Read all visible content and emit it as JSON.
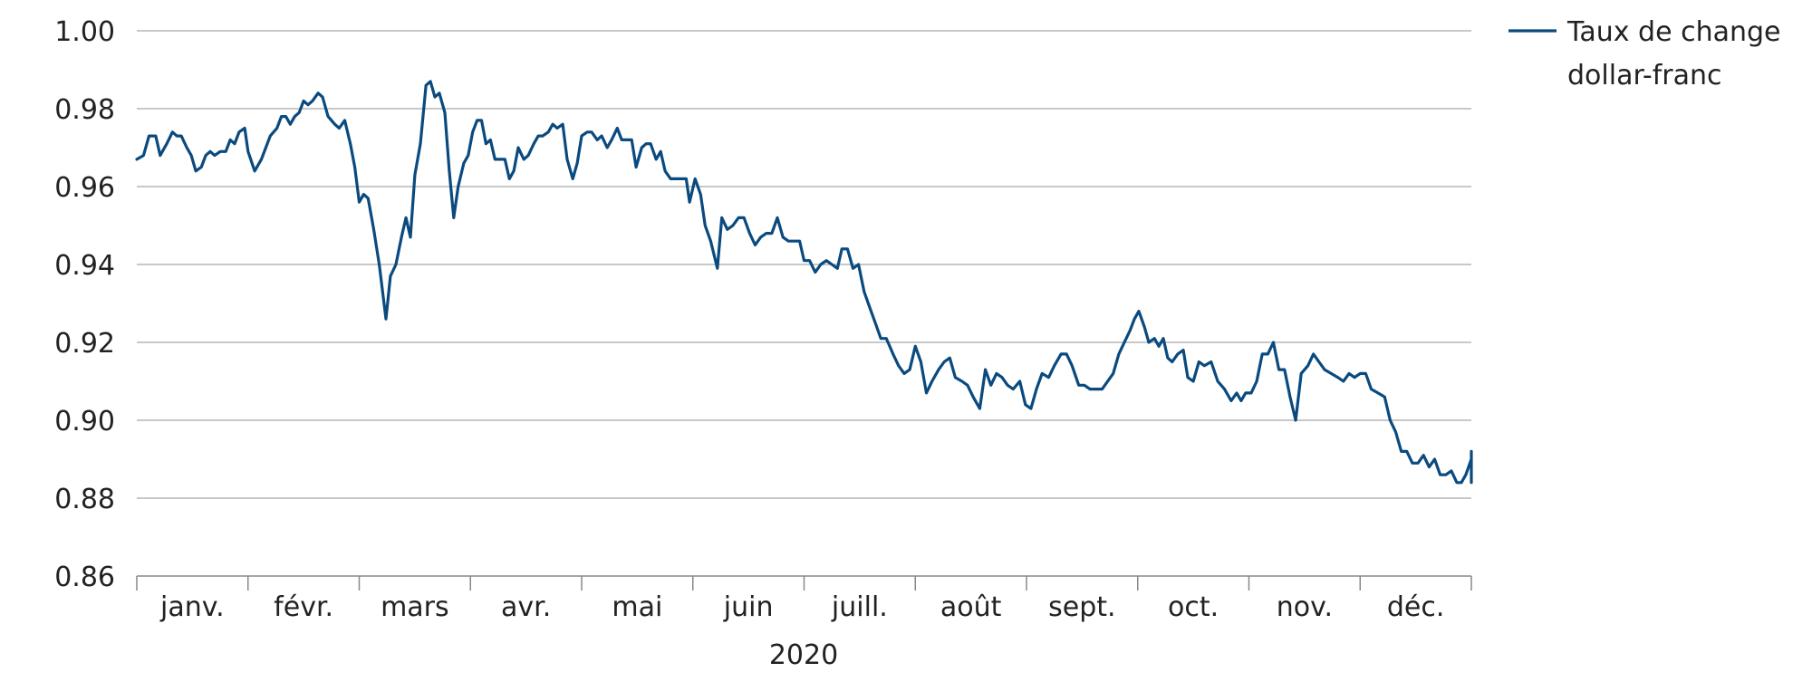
{
  "chart_data": {
    "type": "line",
    "title": "",
    "xlabel": "2020",
    "ylabel": "",
    "ylim": [
      0.86,
      1.0
    ],
    "yticks": [
      "1.00",
      "0.98",
      "0.96",
      "0.94",
      "0.92",
      "0.90",
      "0.88",
      "0.86"
    ],
    "ytick_values": [
      1.0,
      0.98,
      0.96,
      0.94,
      0.92,
      0.9,
      0.88,
      0.86
    ],
    "months": [
      "janv.",
      "févr.",
      "mars",
      "avr.",
      "mai",
      "juin",
      "juill.",
      "août",
      "sept.",
      "oct.",
      "nov.",
      "déc."
    ],
    "grid": "horizontal",
    "legend_position": "top-right",
    "line_color": "#0a4a7f",
    "legend": [
      "Taux de change",
      "dollar-franc"
    ],
    "series": [
      {
        "name": "Taux de change dollar-franc",
        "x_unit": "month (0 = start of janvier 2020, 12 = end of décembre 2020)",
        "points": [
          [
            0.0,
            0.967
          ],
          [
            0.06,
            0.968
          ],
          [
            0.11,
            0.973
          ],
          [
            0.17,
            0.973
          ],
          [
            0.21,
            0.968
          ],
          [
            0.27,
            0.971
          ],
          [
            0.32,
            0.974
          ],
          [
            0.36,
            0.973
          ],
          [
            0.4,
            0.973
          ],
          [
            0.45,
            0.97
          ],
          [
            0.49,
            0.968
          ],
          [
            0.53,
            0.964
          ],
          [
            0.58,
            0.965
          ],
          [
            0.62,
            0.968
          ],
          [
            0.66,
            0.969
          ],
          [
            0.7,
            0.968
          ],
          [
            0.75,
            0.969
          ],
          [
            0.8,
            0.969
          ],
          [
            0.84,
            0.972
          ],
          [
            0.88,
            0.971
          ],
          [
            0.92,
            0.974
          ],
          [
            0.97,
            0.975
          ],
          [
            1.0,
            0.969
          ],
          [
            1.06,
            0.964
          ],
          [
            1.12,
            0.967
          ],
          [
            1.2,
            0.973
          ],
          [
            1.26,
            0.975
          ],
          [
            1.3,
            0.978
          ],
          [
            1.34,
            0.978
          ],
          [
            1.38,
            0.976
          ],
          [
            1.42,
            0.978
          ],
          [
            1.46,
            0.979
          ],
          [
            1.5,
            0.982
          ],
          [
            1.54,
            0.981
          ],
          [
            1.58,
            0.982
          ],
          [
            1.63,
            0.984
          ],
          [
            1.67,
            0.983
          ],
          [
            1.72,
            0.978
          ],
          [
            1.78,
            0.976
          ],
          [
            1.82,
            0.975
          ],
          [
            1.87,
            0.977
          ],
          [
            1.92,
            0.971
          ],
          [
            1.96,
            0.965
          ],
          [
            2.0,
            0.956
          ],
          [
            2.04,
            0.958
          ],
          [
            2.08,
            0.957
          ],
          [
            2.13,
            0.949
          ],
          [
            2.18,
            0.94
          ],
          [
            2.24,
            0.926
          ],
          [
            2.28,
            0.937
          ],
          [
            2.33,
            0.94
          ],
          [
            2.38,
            0.947
          ],
          [
            2.42,
            0.952
          ],
          [
            2.46,
            0.947
          ],
          [
            2.5,
            0.963
          ],
          [
            2.55,
            0.971
          ],
          [
            2.6,
            0.986
          ],
          [
            2.64,
            0.987
          ],
          [
            2.68,
            0.983
          ],
          [
            2.72,
            0.984
          ],
          [
            2.77,
            0.979
          ],
          [
            2.81,
            0.964
          ],
          [
            2.85,
            0.952
          ],
          [
            2.89,
            0.96
          ],
          [
            2.94,
            0.966
          ],
          [
            2.98,
            0.968
          ],
          [
            3.02,
            0.974
          ],
          [
            3.06,
            0.977
          ],
          [
            3.1,
            0.977
          ],
          [
            3.14,
            0.971
          ],
          [
            3.18,
            0.972
          ],
          [
            3.22,
            0.967
          ],
          [
            3.27,
            0.967
          ],
          [
            3.31,
            0.967
          ],
          [
            3.35,
            0.962
          ],
          [
            3.39,
            0.964
          ],
          [
            3.43,
            0.97
          ],
          [
            3.48,
            0.967
          ],
          [
            3.52,
            0.968
          ],
          [
            3.57,
            0.971
          ],
          [
            3.61,
            0.973
          ],
          [
            3.65,
            0.973
          ],
          [
            3.7,
            0.974
          ],
          [
            3.74,
            0.976
          ],
          [
            3.78,
            0.975
          ],
          [
            3.83,
            0.976
          ],
          [
            3.87,
            0.967
          ],
          [
            3.92,
            0.962
          ],
          [
            3.96,
            0.966
          ],
          [
            4.0,
            0.973
          ],
          [
            4.05,
            0.974
          ],
          [
            4.09,
            0.974
          ],
          [
            4.14,
            0.972
          ],
          [
            4.18,
            0.973
          ],
          [
            4.23,
            0.97
          ],
          [
            4.27,
            0.972
          ],
          [
            4.32,
            0.975
          ],
          [
            4.36,
            0.972
          ],
          [
            4.41,
            0.972
          ],
          [
            4.45,
            0.972
          ],
          [
            4.49,
            0.965
          ],
          [
            4.54,
            0.97
          ],
          [
            4.58,
            0.971
          ],
          [
            4.62,
            0.971
          ],
          [
            4.67,
            0.967
          ],
          [
            4.71,
            0.969
          ],
          [
            4.75,
            0.964
          ],
          [
            4.8,
            0.962
          ],
          [
            4.85,
            0.962
          ],
          [
            4.9,
            0.962
          ],
          [
            4.94,
            0.962
          ],
          [
            4.97,
            0.956
          ],
          [
            5.02,
            0.962
          ],
          [
            5.07,
            0.958
          ],
          [
            5.11,
            0.95
          ],
          [
            5.16,
            0.946
          ],
          [
            5.22,
            0.939
          ],
          [
            5.26,
            0.952
          ],
          [
            5.31,
            0.949
          ],
          [
            5.36,
            0.95
          ],
          [
            5.41,
            0.952
          ],
          [
            5.46,
            0.952
          ],
          [
            5.51,
            0.948
          ],
          [
            5.56,
            0.945
          ],
          [
            5.61,
            0.947
          ],
          [
            5.66,
            0.948
          ],
          [
            5.71,
            0.948
          ],
          [
            5.76,
            0.952
          ],
          [
            5.81,
            0.947
          ],
          [
            5.86,
            0.946
          ],
          [
            5.91,
            0.946
          ],
          [
            5.96,
            0.946
          ],
          [
            6.0,
            0.941
          ],
          [
            6.05,
            0.941
          ],
          [
            6.1,
            0.938
          ],
          [
            6.15,
            0.94
          ],
          [
            6.2,
            0.941
          ],
          [
            6.25,
            0.94
          ],
          [
            6.3,
            0.939
          ],
          [
            6.34,
            0.944
          ],
          [
            6.39,
            0.944
          ],
          [
            6.44,
            0.939
          ],
          [
            6.49,
            0.94
          ],
          [
            6.54,
            0.933
          ],
          [
            6.59,
            0.929
          ],
          [
            6.64,
            0.925
          ],
          [
            6.69,
            0.921
          ],
          [
            6.74,
            0.921
          ],
          [
            6.8,
            0.917
          ],
          [
            6.85,
            0.914
          ],
          [
            6.9,
            0.912
          ],
          [
            6.95,
            0.913
          ],
          [
            7.0,
            0.919
          ],
          [
            7.05,
            0.915
          ],
          [
            7.1,
            0.907
          ],
          [
            7.15,
            0.91
          ],
          [
            7.21,
            0.913
          ],
          [
            7.26,
            0.915
          ],
          [
            7.31,
            0.916
          ],
          [
            7.36,
            0.911
          ],
          [
            7.42,
            0.91
          ],
          [
            7.47,
            0.909
          ],
          [
            7.52,
            0.906
          ],
          [
            7.58,
            0.903
          ],
          [
            7.63,
            0.913
          ],
          [
            7.68,
            0.909
          ],
          [
            7.73,
            0.912
          ],
          [
            7.78,
            0.911
          ],
          [
            7.83,
            0.909
          ],
          [
            7.88,
            0.908
          ],
          [
            7.94,
            0.91
          ],
          [
            7.99,
            0.904
          ],
          [
            8.04,
            0.903
          ],
          [
            8.09,
            0.908
          ],
          [
            8.14,
            0.912
          ],
          [
            8.2,
            0.911
          ],
          [
            8.25,
            0.914
          ],
          [
            8.31,
            0.917
          ],
          [
            8.36,
            0.917
          ],
          [
            8.41,
            0.914
          ],
          [
            8.47,
            0.909
          ],
          [
            8.52,
            0.909
          ],
          [
            8.57,
            0.908
          ],
          [
            8.62,
            0.908
          ],
          [
            8.68,
            0.908
          ],
          [
            8.73,
            0.91
          ],
          [
            8.78,
            0.912
          ],
          [
            8.83,
            0.917
          ],
          [
            8.88,
            0.92
          ],
          [
            8.93,
            0.923
          ],
          [
            8.97,
            0.926
          ],
          [
            9.01,
            0.928
          ],
          [
            9.06,
            0.924
          ],
          [
            9.1,
            0.92
          ],
          [
            9.15,
            0.921
          ],
          [
            9.19,
            0.919
          ],
          [
            9.23,
            0.921
          ],
          [
            9.27,
            0.916
          ],
          [
            9.31,
            0.915
          ],
          [
            9.36,
            0.917
          ],
          [
            9.41,
            0.918
          ],
          [
            9.45,
            0.911
          ],
          [
            9.5,
            0.91
          ],
          [
            9.55,
            0.915
          ],
          [
            9.6,
            0.914
          ],
          [
            9.66,
            0.915
          ],
          [
            9.72,
            0.91
          ],
          [
            9.78,
            0.908
          ],
          [
            9.84,
            0.905
          ],
          [
            9.89,
            0.907
          ],
          [
            9.93,
            0.905
          ],
          [
            9.97,
            0.907
          ],
          [
            10.02,
            0.907
          ],
          [
            10.07,
            0.91
          ],
          [
            10.12,
            0.917
          ],
          [
            10.17,
            0.917
          ],
          [
            10.22,
            0.92
          ],
          [
            10.27,
            0.913
          ],
          [
            10.32,
            0.913
          ],
          [
            10.37,
            0.906
          ],
          [
            10.42,
            0.9
          ],
          [
            10.47,
            0.912
          ],
          [
            10.53,
            0.914
          ],
          [
            10.58,
            0.917
          ],
          [
            10.63,
            0.915
          ],
          [
            10.68,
            0.913
          ],
          [
            10.74,
            0.912
          ],
          [
            10.8,
            0.911
          ],
          [
            10.85,
            0.91
          ],
          [
            10.9,
            0.912
          ],
          [
            10.95,
            0.911
          ],
          [
            11.0,
            0.912
          ],
          [
            11.05,
            0.912
          ],
          [
            11.1,
            0.908
          ],
          [
            11.16,
            0.907
          ],
          [
            11.22,
            0.906
          ],
          [
            11.27,
            0.9
          ],
          [
            11.32,
            0.897
          ],
          [
            11.37,
            0.892
          ],
          [
            11.42,
            0.892
          ],
          [
            11.47,
            0.889
          ],
          [
            11.52,
            0.889
          ],
          [
            11.57,
            0.891
          ],
          [
            11.62,
            0.888
          ],
          [
            11.67,
            0.89
          ],
          [
            11.72,
            0.886
          ],
          [
            11.77,
            0.886
          ],
          [
            11.82,
            0.887
          ],
          [
            11.87,
            0.884
          ],
          [
            11.91,
            0.884
          ],
          [
            11.95,
            0.886
          ],
          [
            12.0,
            0.89
          ],
          [
            12.04,
            0.889
          ],
          [
            12.08,
            0.892
          ],
          [
            12.13,
            0.89
          ],
          [
            12.17,
            0.89
          ],
          [
            12.22,
            0.885
          ],
          [
            12.26,
            0.884
          ],
          [
            12.3,
            0.886
          ]
        ]
      }
    ]
  }
}
